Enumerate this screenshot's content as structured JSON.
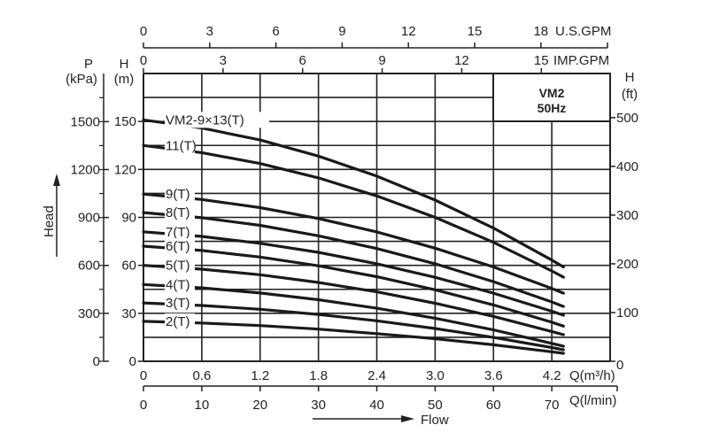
{
  "chart_data": {
    "type": "line",
    "title": "VM2 50Hz",
    "legend_box": {
      "model": "VM2",
      "frequency": "50Hz"
    },
    "xlabel": "Flow",
    "ylabel": "Head",
    "x_unit_label": "Q(m³/h)",
    "x2_unit_label": "Q(l/min)",
    "top_unit_label_us": "U.S.GPM",
    "top_unit_label_imp": "IMP.GPM",
    "left_p_title": "P",
    "left_p_unit": "(kPa)",
    "left_h_title": "H",
    "left_h_unit": "(m)",
    "right_h_title": "H",
    "right_h_unit": "(ft)",
    "xlim": [
      0,
      4.8
    ],
    "ylim": [
      0,
      180
    ],
    "grid": true,
    "x_ticks": [
      "0",
      "0.6",
      "1.2",
      "1.8",
      "2.4",
      "3.0",
      "3.6",
      "4.2"
    ],
    "x_tick_values": [
      0,
      0.6,
      1.2,
      1.8,
      2.4,
      3.0,
      3.6,
      4.2
    ],
    "lmin_ticks": [
      0,
      10,
      20,
      30,
      40,
      50,
      60,
      70
    ],
    "us_gpm_ticks": [
      0,
      3,
      6,
      9,
      12,
      15,
      18
    ],
    "imp_gpm_ticks": [
      0,
      3,
      6,
      9,
      12,
      15
    ],
    "h_m_ticks": [
      0,
      30,
      60,
      90,
      120,
      150
    ],
    "p_kpa_ticks": [
      0,
      300,
      600,
      900,
      1200,
      1500
    ],
    "h_ft_ticks": [
      0,
      100,
      200,
      300,
      400,
      500
    ],
    "x": [
      0,
      0.6,
      1.2,
      1.8,
      2.4,
      3.0,
      3.6,
      4.2,
      4.32
    ],
    "series": [
      {
        "name": "VM2-9×13(T)",
        "values": [
          151,
          145.9,
          138.4,
          128.3,
          115.8,
          100.8,
          83.3,
          63.3,
          59
        ]
      },
      {
        "name": "11(T)",
        "values": [
          135,
          130.5,
          123.7,
          114.7,
          103.4,
          90.0,
          74.4,
          56.5,
          52.6
        ]
      },
      {
        "name": "9(T)",
        "values": [
          104.6,
          101.2,
          96.1,
          89.3,
          80.9,
          70.7,
          59.0,
          45.5,
          42.6
        ]
      },
      {
        "name": "8(T)",
        "values": [
          93,
          89.8,
          85.0,
          78.5,
          70.5,
          61.0,
          49.8,
          37.1,
          34.3
        ]
      },
      {
        "name": "7(T)",
        "values": [
          81,
          78.1,
          73.8,
          68.1,
          61.0,
          52.5,
          42.6,
          31.3,
          28.8
        ]
      },
      {
        "name": "6(T)",
        "values": [
          72,
          69.3,
          65.2,
          59.7,
          52.9,
          44.7,
          35.2,
          24.4,
          22
        ]
      },
      {
        "name": "5(T)",
        "values": [
          60,
          57.6,
          54.1,
          49.3,
          43.4,
          36.3,
          28.1,
          18.6,
          16.6
        ]
      },
      {
        "name": "4(T)",
        "values": [
          48,
          45.9,
          42.7,
          38.5,
          33.2,
          26.9,
          19.6,
          11.2,
          9.4
        ]
      },
      {
        "name": "3(T)",
        "values": [
          36.5,
          34.9,
          32.5,
          29.3,
          25.3,
          20.5,
          14.9,
          8.6,
          7.2
        ]
      },
      {
        "name": "2(T)",
        "values": [
          25,
          23.9,
          22.3,
          20.1,
          17.3,
          14.1,
          10.3,
          5.9,
          5
        ]
      }
    ]
  }
}
